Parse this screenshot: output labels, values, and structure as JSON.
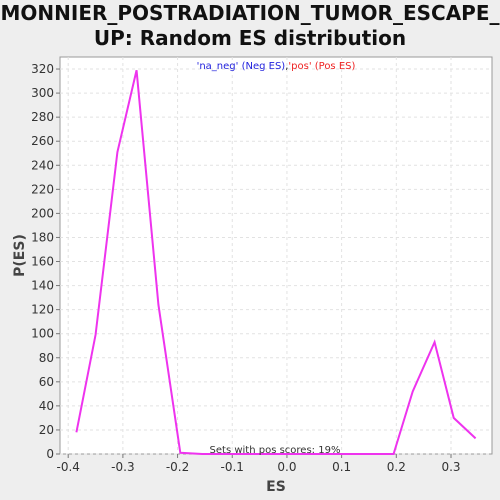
{
  "chart_data": {
    "type": "line",
    "title": "MONNIER_POSTRADIATION_TUMOR_ESCAPE_UP: Random ES distribution",
    "xlabel": "ES",
    "ylabel": "P(ES)",
    "xlim": [
      -0.415,
      0.375
    ],
    "ylim": [
      0,
      330
    ],
    "xticks": [
      -0.4,
      -0.3,
      -0.2,
      -0.1,
      0.0,
      0.1,
      0.2,
      0.3
    ],
    "xtick_labels": [
      "-0.4",
      "-0.3",
      "-0.2",
      "-0.1",
      "0.0",
      "0.1",
      "0.2",
      "0.3"
    ],
    "yticks": [
      0,
      20,
      40,
      60,
      80,
      100,
      120,
      140,
      160,
      180,
      200,
      220,
      240,
      260,
      280,
      300,
      320
    ],
    "grid": true,
    "legend": [
      {
        "text": "'na_neg' (Neg ES)",
        "color": "#2222dd"
      },
      {
        "text": ",",
        "color": "#111111"
      },
      {
        "text": "'pos' (Pos ES)",
        "color": "#ee2222"
      }
    ],
    "legend_position": "top-center",
    "annotation": "Sets with pos scores: 19%",
    "series": [
      {
        "color": "#ee33ee",
        "x": [
          -0.385,
          -0.35,
          -0.31,
          -0.275,
          -0.235,
          -0.195,
          -0.155,
          -0.115,
          -0.075,
          -0.035,
          0.005,
          0.045,
          0.085,
          0.125,
          0.165,
          0.195,
          0.23,
          0.27,
          0.305,
          0.345
        ],
        "y": [
          18,
          99,
          251,
          319,
          124,
          1,
          0,
          0,
          0,
          0,
          0,
          0,
          0,
          0,
          0,
          0,
          52,
          93,
          30,
          13
        ]
      }
    ]
  }
}
